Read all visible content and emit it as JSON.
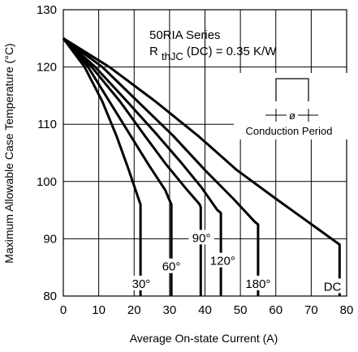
{
  "chart_data": {
    "type": "line",
    "title": "50RIA Series",
    "subtitle": {
      "prefix": "R",
      "subscript": "thJC",
      "suffix": " (DC) = 0.35 K/W"
    },
    "xlabel": "Average On-state Current (A)",
    "ylabel": "Maximum Allowable Case Temperature (°C)",
    "xlim": [
      0,
      80
    ],
    "ylim": [
      80,
      130
    ],
    "xticks": [
      0,
      10,
      20,
      30,
      40,
      50,
      60,
      70,
      80
    ],
    "yticks": [
      80,
      90,
      100,
      110,
      120,
      130
    ],
    "grid": true,
    "inset_label": "Conduction Period",
    "inset_symbol": "ø",
    "series": [
      {
        "name": "30°",
        "points": [
          [
            0,
            125
          ],
          [
            6,
            120
          ],
          [
            11,
            114
          ],
          [
            15,
            108
          ],
          [
            18.5,
            102
          ],
          [
            21.5,
            96.5
          ],
          [
            21.8,
            96
          ],
          [
            21.8,
            80
          ]
        ]
      },
      {
        "name": "60°",
        "points": [
          [
            0,
            125
          ],
          [
            7,
            120
          ],
          [
            13,
            114
          ],
          [
            19,
            108
          ],
          [
            24,
            103
          ],
          [
            28.8,
            98.5
          ],
          [
            29.8,
            97
          ],
          [
            30.5,
            96
          ],
          [
            30.5,
            80
          ]
        ]
      },
      {
        "name": "90°",
        "points": [
          [
            0,
            125
          ],
          [
            8,
            120
          ],
          [
            16,
            114
          ],
          [
            23,
            108
          ],
          [
            29,
            103
          ],
          [
            35,
            98.5
          ],
          [
            38.5,
            96
          ],
          [
            38.8,
            95.5
          ],
          [
            38.8,
            80
          ]
        ]
      },
      {
        "name": "120°",
        "points": [
          [
            0,
            125
          ],
          [
            9,
            120
          ],
          [
            18,
            114
          ],
          [
            26,
            108.5
          ],
          [
            33,
            103.5
          ],
          [
            39,
            99
          ],
          [
            43.5,
            95
          ],
          [
            44.5,
            94.5
          ],
          [
            44.5,
            80
          ]
        ]
      },
      {
        "name": "180°",
        "points": [
          [
            0,
            125
          ],
          [
            11,
            120
          ],
          [
            21,
            114
          ],
          [
            31,
            108
          ],
          [
            40,
            102
          ],
          [
            48,
            97
          ],
          [
            54,
            93
          ],
          [
            55,
            92.5
          ],
          [
            55,
            80
          ]
        ]
      },
      {
        "name": "DC",
        "points": [
          [
            0,
            125
          ],
          [
            13,
            120
          ],
          [
            26,
            114
          ],
          [
            38,
            108
          ],
          [
            49,
            102
          ],
          [
            60,
            97
          ],
          [
            69,
            93
          ],
          [
            78,
            89
          ],
          [
            78,
            80
          ]
        ]
      }
    ],
    "series_labels": [
      {
        "text": "30°",
        "x": 22,
        "y": 82
      },
      {
        "text": "60°",
        "x": 30.5,
        "y": 85
      },
      {
        "text": "90°",
        "x": 39,
        "y": 90
      },
      {
        "text": "120°",
        "x": 45,
        "y": 86
      },
      {
        "text": "180°",
        "x": 55,
        "y": 82
      },
      {
        "text": "DC",
        "x": 76,
        "y": 81.5
      }
    ]
  }
}
